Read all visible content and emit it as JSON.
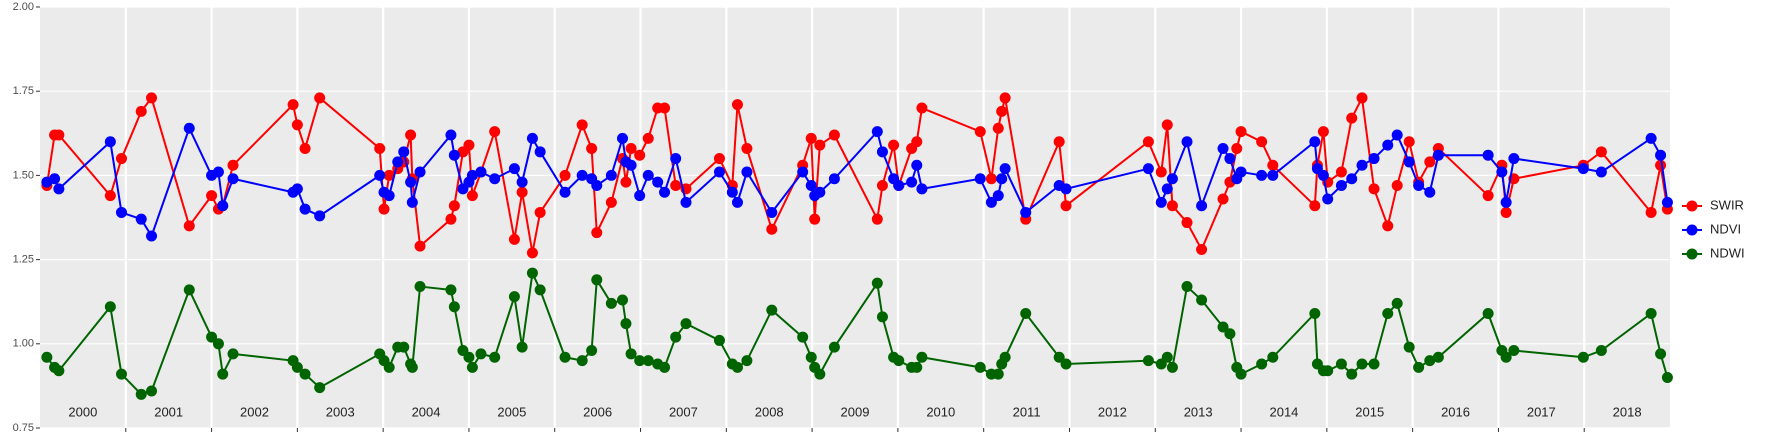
{
  "chart_data": {
    "type": "line",
    "x": [
      2000.08,
      2000.17,
      2000.22,
      2000.82,
      2000.95,
      2001.18,
      2001.3,
      2001.74,
      2002.0,
      2002.08,
      2002.13,
      2002.25,
      2002.95,
      2003.0,
      2003.09,
      2003.26,
      2003.96,
      2004.01,
      2004.07,
      2004.17,
      2004.24,
      2004.32,
      2004.34,
      2004.43,
      2004.79,
      2004.83,
      2004.93,
      2005.0,
      2005.04,
      2005.14,
      2005.3,
      2005.53,
      2005.62,
      2005.74,
      2005.83,
      2006.12,
      2006.32,
      2006.43,
      2006.49,
      2006.66,
      2006.79,
      2006.83,
      2006.89,
      2006.99,
      2007.09,
      2007.2,
      2007.28,
      2007.41,
      2007.53,
      2007.92,
      2008.07,
      2008.13,
      2008.24,
      2008.53,
      2008.89,
      2008.99,
      2009.03,
      2009.09,
      2009.26,
      2009.76,
      2009.82,
      2009.95,
      2010.01,
      2010.16,
      2010.22,
      2010.28,
      2010.96,
      2011.09,
      2011.17,
      2011.21,
      2011.25,
      2011.49,
      2011.88,
      2011.96,
      2012.92,
      2013.07,
      2013.14,
      2013.2,
      2013.37,
      2013.54,
      2013.79,
      2013.87,
      2013.95,
      2014.0,
      2014.24,
      2014.37,
      2014.86,
      2014.89,
      2014.96,
      2015.01,
      2015.17,
      2015.29,
      2015.41,
      2015.55,
      2015.71,
      2015.82,
      2015.96,
      2016.07,
      2016.2,
      2016.3,
      2016.88,
      2017.04,
      2017.09,
      2017.18,
      2017.99,
      2018.2,
      2018.78,
      2018.89,
      2018.97
    ],
    "series": [
      {
        "name": "SWIR",
        "color": "#ff0000",
        "values": [
          1.47,
          1.62,
          1.62,
          1.44,
          1.55,
          1.69,
          1.73,
          1.35,
          1.44,
          1.4,
          1.41,
          1.53,
          1.71,
          1.65,
          1.58,
          1.73,
          1.58,
          1.4,
          1.5,
          1.52,
          1.54,
          1.62,
          1.49,
          1.29,
          1.37,
          1.41,
          1.57,
          1.59,
          1.44,
          1.51,
          1.63,
          1.31,
          1.45,
          1.27,
          1.39,
          1.5,
          1.65,
          1.58,
          1.33,
          1.42,
          1.55,
          1.48,
          1.58,
          1.56,
          1.61,
          1.7,
          1.7,
          1.47,
          1.46,
          1.55,
          1.47,
          1.71,
          1.58,
          1.34,
          1.53,
          1.61,
          1.37,
          1.59,
          1.62,
          1.37,
          1.47,
          1.59,
          1.47,
          1.58,
          1.6,
          1.7,
          1.63,
          1.49,
          1.64,
          1.69,
          1.73,
          1.37,
          1.6,
          1.41,
          1.6,
          1.51,
          1.65,
          1.41,
          1.36,
          1.28,
          1.43,
          1.48,
          1.58,
          1.63,
          1.6,
          1.53,
          1.41,
          1.53,
          1.63,
          1.48,
          1.51,
          1.67,
          1.73,
          1.46,
          1.35,
          1.47,
          1.6,
          1.48,
          1.54,
          1.58,
          1.44,
          1.53,
          1.39,
          1.49,
          1.53,
          1.57,
          1.39,
          1.53,
          1.4
        ]
      },
      {
        "name": "NDVI",
        "color": "#0000ff",
        "values": [
          1.48,
          1.49,
          1.46,
          1.6,
          1.39,
          1.37,
          1.32,
          1.64,
          1.5,
          1.51,
          1.41,
          1.49,
          1.45,
          1.46,
          1.4,
          1.38,
          1.5,
          1.45,
          1.44,
          1.54,
          1.57,
          1.48,
          1.42,
          1.51,
          1.62,
          1.56,
          1.46,
          1.48,
          1.5,
          1.51,
          1.49,
          1.52,
          1.48,
          1.61,
          1.57,
          1.45,
          1.5,
          1.49,
          1.47,
          1.5,
          1.61,
          1.54,
          1.53,
          1.44,
          1.5,
          1.48,
          1.45,
          1.55,
          1.42,
          1.51,
          1.45,
          1.42,
          1.51,
          1.39,
          1.51,
          1.47,
          1.44,
          1.45,
          1.49,
          1.63,
          1.57,
          1.49,
          1.47,
          1.48,
          1.53,
          1.46,
          1.49,
          1.42,
          1.44,
          1.49,
          1.52,
          1.39,
          1.47,
          1.46,
          1.52,
          1.42,
          1.46,
          1.49,
          1.6,
          1.41,
          1.58,
          1.55,
          1.49,
          1.51,
          1.5,
          1.5,
          1.6,
          1.52,
          1.5,
          1.43,
          1.47,
          1.49,
          1.53,
          1.55,
          1.59,
          1.62,
          1.54,
          1.47,
          1.45,
          1.56,
          1.56,
          1.51,
          1.42,
          1.55,
          1.52,
          1.51,
          1.61,
          1.56,
          1.42
        ]
      },
      {
        "name": "NDWI",
        "color": "#006400",
        "values": [
          0.96,
          0.93,
          0.92,
          1.11,
          0.91,
          0.85,
          0.86,
          1.16,
          1.02,
          1.0,
          0.91,
          0.97,
          0.95,
          0.93,
          0.91,
          0.87,
          0.97,
          0.95,
          0.93,
          0.99,
          0.99,
          0.94,
          0.93,
          1.17,
          1.16,
          1.11,
          0.98,
          0.96,
          0.93,
          0.97,
          0.96,
          1.14,
          0.99,
          1.21,
          1.16,
          0.96,
          0.95,
          0.98,
          1.19,
          1.12,
          1.13,
          1.06,
          0.97,
          0.95,
          0.95,
          0.94,
          0.93,
          1.02,
          1.06,
          1.01,
          0.94,
          0.93,
          0.95,
          1.1,
          1.02,
          0.96,
          0.93,
          0.91,
          0.99,
          1.18,
          1.08,
          0.96,
          0.95,
          0.93,
          0.93,
          0.96,
          0.93,
          0.91,
          0.91,
          0.94,
          0.96,
          1.09,
          0.96,
          0.94,
          0.95,
          0.94,
          0.96,
          0.93,
          1.17,
          1.13,
          1.05,
          1.03,
          0.93,
          0.91,
          0.94,
          0.96,
          1.09,
          0.94,
          0.92,
          0.92,
          0.94,
          0.91,
          0.94,
          0.94,
          1.09,
          1.12,
          0.99,
          0.93,
          0.95,
          0.96,
          1.09,
          0.98,
          0.96,
          0.98,
          0.96,
          0.98,
          1.09,
          0.97,
          0.9
        ]
      }
    ],
    "xlim": [
      2000,
      2019
    ],
    "xticks": [
      2001,
      2002,
      2003,
      2004,
      2005,
      2006,
      2007,
      2008,
      2009,
      2010,
      2011,
      2012,
      2013,
      2014,
      2015,
      2016,
      2017,
      2018
    ],
    "year_labels": [
      {
        "value": 2000.5,
        "label": "2000"
      },
      {
        "value": 2001.5,
        "label": "2001"
      },
      {
        "value": 2002.5,
        "label": "2002"
      },
      {
        "value": 2003.5,
        "label": "2003"
      },
      {
        "value": 2004.5,
        "label": "2004"
      },
      {
        "value": 2005.5,
        "label": "2005"
      },
      {
        "value": 2006.5,
        "label": "2006"
      },
      {
        "value": 2007.5,
        "label": "2007"
      },
      {
        "value": 2008.5,
        "label": "2008"
      },
      {
        "value": 2009.5,
        "label": "2009"
      },
      {
        "value": 2010.5,
        "label": "2010"
      },
      {
        "value": 2011.5,
        "label": "2011"
      },
      {
        "value": 2012.5,
        "label": "2012"
      },
      {
        "value": 2013.5,
        "label": "2013"
      },
      {
        "value": 2014.5,
        "label": "2014"
      },
      {
        "value": 2015.5,
        "label": "2015"
      },
      {
        "value": 2016.5,
        "label": "2016"
      },
      {
        "value": 2017.5,
        "label": "2017"
      },
      {
        "value": 2018.5,
        "label": "2018"
      }
    ],
    "ylim": [
      0.75,
      2
    ],
    "yticks": [
      {
        "value": 0.75,
        "label": "0.75"
      },
      {
        "value": 1,
        "label": "1.00"
      },
      {
        "value": 1.25,
        "label": "1.25"
      },
      {
        "value": 1.5,
        "label": "1.50"
      },
      {
        "value": 1.75,
        "label": "1.75"
      },
      {
        "value": 2,
        "label": "2.00"
      }
    ],
    "grid": true,
    "legend": "right"
  }
}
